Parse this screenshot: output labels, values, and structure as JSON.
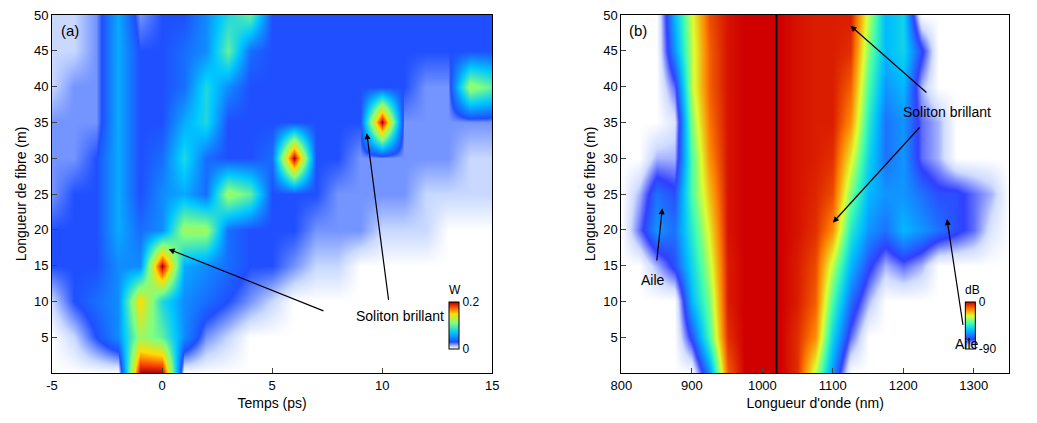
{
  "chart_data": [
    {
      "type": "heatmap",
      "label": "(a)",
      "xlabel": "Temps (ps)",
      "ylabel": "Longueur de fibre (m)",
      "xlim": [
        -5,
        15
      ],
      "ylim": [
        0,
        50
      ],
      "xticks": [
        -5,
        0,
        5,
        10,
        15
      ],
      "yticks": [
        5,
        10,
        15,
        20,
        25,
        30,
        35,
        40,
        45,
        50
      ],
      "x": [
        -5,
        -4,
        -3,
        -2,
        -1,
        0,
        1,
        2,
        3,
        4,
        5,
        6,
        7,
        8,
        9,
        10,
        11,
        12,
        13,
        14,
        15
      ],
      "y": [
        0,
        5,
        10,
        15,
        20,
        25,
        30,
        35,
        40,
        45,
        50
      ],
      "z": [
        [
          0,
          0,
          0,
          0,
          0.2,
          0.2,
          0,
          0,
          0,
          0,
          0,
          0,
          0,
          0,
          0,
          0,
          0,
          0,
          0,
          0,
          0
        ],
        [
          0,
          0.01,
          0.03,
          0.05,
          0.12,
          0.1,
          0.05,
          0.02,
          0.01,
          0,
          0,
          0,
          0,
          0,
          0,
          0,
          0,
          0,
          0,
          0,
          0
        ],
        [
          0.01,
          0.03,
          0.04,
          0.05,
          0.15,
          0.08,
          0.05,
          0.04,
          0.03,
          0.02,
          0.01,
          0,
          0,
          0,
          0,
          0,
          0,
          0,
          0,
          0,
          0
        ],
        [
          0.03,
          0.03,
          0.03,
          0.05,
          0.05,
          0.2,
          0.06,
          0.05,
          0.04,
          0.03,
          0.03,
          0.02,
          0.01,
          0.01,
          0,
          0,
          0,
          0,
          0,
          0,
          0
        ],
        [
          0.03,
          0.03,
          0.03,
          0.06,
          0.04,
          0.05,
          0.12,
          0.12,
          0.04,
          0.03,
          0.03,
          0.03,
          0.02,
          0.02,
          0.02,
          0.01,
          0.01,
          0.01,
          0,
          0,
          0
        ],
        [
          0.02,
          0.03,
          0.03,
          0.06,
          0.03,
          0.05,
          0.06,
          0.04,
          0.12,
          0.1,
          0.03,
          0.03,
          0.03,
          0.02,
          0.02,
          0.02,
          0.02,
          0.01,
          0.01,
          0.01,
          0.01
        ],
        [
          0.02,
          0.02,
          0.03,
          0.06,
          0.03,
          0.04,
          0.08,
          0.04,
          0.03,
          0.03,
          0.04,
          0.2,
          0.03,
          0.03,
          0.02,
          0.02,
          0.02,
          0.02,
          0.02,
          0.01,
          0.01
        ],
        [
          0.02,
          0.02,
          0.02,
          0.06,
          0.03,
          0.03,
          0.06,
          0.08,
          0.03,
          0.03,
          0.03,
          0.03,
          0.03,
          0.03,
          0.03,
          0.2,
          0.02,
          0.02,
          0.02,
          0.02,
          0.02
        ],
        [
          0.01,
          0.02,
          0.02,
          0.06,
          0.03,
          0.03,
          0.04,
          0.08,
          0.05,
          0.03,
          0.03,
          0.03,
          0.03,
          0.03,
          0.03,
          0.03,
          0.03,
          0.02,
          0.02,
          0.12,
          0.1
        ],
        [
          0.01,
          0.01,
          0.02,
          0.06,
          0.03,
          0.03,
          0.04,
          0.05,
          0.1,
          0.04,
          0.03,
          0.03,
          0.03,
          0.03,
          0.03,
          0.03,
          0.03,
          0.03,
          0.03,
          0.03,
          0.03
        ],
        [
          0.01,
          0.01,
          0.02,
          0.06,
          0.02,
          0.03,
          0.03,
          0.05,
          0.08,
          0.1,
          0.03,
          0.03,
          0.03,
          0.03,
          0.03,
          0.03,
          0.03,
          0.03,
          0.03,
          0.03,
          0.03
        ]
      ],
      "colorbar": {
        "title": "W",
        "range": [
          0,
          0.2
        ],
        "ticks": [
          0,
          0.2
        ]
      },
      "annotations": [
        {
          "text": "Soliton brillant",
          "x": 10.8,
          "y": 8,
          "arrows": [
            {
              "from": [
                10.3,
                10
              ],
              "to": [
                9.3,
                33.5
              ]
            },
            {
              "from": [
                7.4,
                8.6
              ],
              "to": [
                0.3,
                17.3
              ]
            }
          ]
        }
      ]
    },
    {
      "type": "heatmap",
      "label": "(b)",
      "xlabel": "Longueur d'onde (nm)",
      "ylabel": "Longueur de fibre (m)",
      "xlim": [
        800,
        1350
      ],
      "ylim": [
        0,
        50
      ],
      "xticks": [
        800,
        900,
        1000,
        1100,
        1200,
        1300
      ],
      "yticks": [
        5,
        10,
        15,
        20,
        25,
        30,
        35,
        40,
        45,
        50
      ],
      "x": [
        800,
        825,
        850,
        875,
        900,
        925,
        950,
        975,
        1000,
        1025,
        1050,
        1075,
        1100,
        1125,
        1150,
        1175,
        1200,
        1225,
        1250,
        1275,
        1300,
        1325,
        1350
      ],
      "y": [
        0,
        5,
        10,
        15,
        20,
        25,
        30,
        35,
        40,
        45,
        50
      ],
      "z": [
        [
          -90,
          -90,
          -90,
          -90,
          -90,
          -60,
          -10,
          0,
          0,
          0,
          -5,
          -30,
          -60,
          -90,
          -90,
          -90,
          -90,
          -90,
          -90,
          -90,
          -90,
          -90,
          -90
        ],
        [
          -90,
          -90,
          -90,
          -90,
          -70,
          -40,
          -5,
          0,
          0,
          0,
          -5,
          -15,
          -50,
          -75,
          -90,
          -90,
          -90,
          -90,
          -90,
          -90,
          -90,
          -90,
          -90
        ],
        [
          -90,
          -90,
          -90,
          -90,
          -55,
          -35,
          -3,
          0,
          0,
          0,
          -3,
          -10,
          -40,
          -65,
          -80,
          -90,
          -90,
          -90,
          -90,
          -90,
          -90,
          -90,
          -90
        ],
        [
          -90,
          -90,
          -80,
          -70,
          -50,
          -30,
          -3,
          0,
          0,
          0,
          -3,
          -8,
          -30,
          -55,
          -70,
          -80,
          -75,
          -80,
          -90,
          -90,
          -90,
          -90,
          -90
        ],
        [
          -90,
          -75,
          -60,
          -65,
          -45,
          -25,
          -2,
          0,
          0,
          0,
          -2,
          -5,
          -15,
          -45,
          -60,
          -65,
          -55,
          -60,
          -65,
          -70,
          -75,
          -85,
          -90
        ],
        [
          -90,
          -80,
          -65,
          -70,
          -40,
          -20,
          -2,
          0,
          0,
          0,
          -2,
          -4,
          -8,
          -35,
          -55,
          -60,
          -60,
          -65,
          -70,
          -70,
          -75,
          -80,
          -90
        ],
        [
          -90,
          -90,
          -80,
          -80,
          -40,
          -15,
          -2,
          0,
          0,
          0,
          -2,
          -3,
          -5,
          -25,
          -50,
          -65,
          -60,
          -75,
          -80,
          -90,
          -90,
          -90,
          -90
        ],
        [
          -90,
          -90,
          -90,
          -85,
          -35,
          -12,
          -2,
          0,
          0,
          0,
          -2,
          -3,
          -3,
          -15,
          -45,
          -65,
          -60,
          -75,
          -80,
          -90,
          -90,
          -90,
          -90
        ],
        [
          -90,
          -90,
          -90,
          -75,
          -30,
          -10,
          -2,
          0,
          0,
          0,
          -2,
          -3,
          -3,
          -10,
          -40,
          -60,
          -55,
          -80,
          -90,
          -90,
          -90,
          -90,
          -90
        ],
        [
          -90,
          -90,
          -90,
          -60,
          -30,
          -10,
          -2,
          0,
          0,
          0,
          -2,
          -3,
          -3,
          -5,
          -35,
          -55,
          -50,
          -70,
          -90,
          -90,
          -90,
          -90,
          -90
        ],
        [
          -90,
          -90,
          -90,
          -55,
          -28,
          -8,
          -2,
          0,
          0,
          0,
          -2,
          -3,
          -3,
          -3,
          -30,
          -55,
          -50,
          -90,
          -90,
          -90,
          -90,
          -90,
          -90
        ]
      ],
      "colorbar": {
        "title": "dB",
        "range": [
          -90,
          0
        ],
        "ticks": [
          -90,
          0
        ]
      },
      "vline": {
        "x": 1020,
        "color": "black"
      },
      "annotations": [
        {
          "text": "Soliton brillant",
          "x": 1262,
          "y": 36.5,
          "arrows": [
            {
              "from": [
                1235,
                39
              ],
              "to": [
                1125,
                48.5
              ]
            },
            {
              "from": [
                1225,
                34.5
              ],
              "to": [
                1100,
                21
              ]
            }
          ]
        },
        {
          "text": "Aile",
          "x": 845,
          "y": 13,
          "arrows": [
            {
              "from": [
                850,
                15.5
              ],
              "to": [
                858,
                23
              ]
            }
          ]
        },
        {
          "text": "Aile",
          "x": 1290,
          "y": 4,
          "arrows": [
            {
              "from": [
                1285,
                6.5
              ],
              "to": [
                1262,
                21.5
              ]
            }
          ]
        }
      ]
    }
  ]
}
